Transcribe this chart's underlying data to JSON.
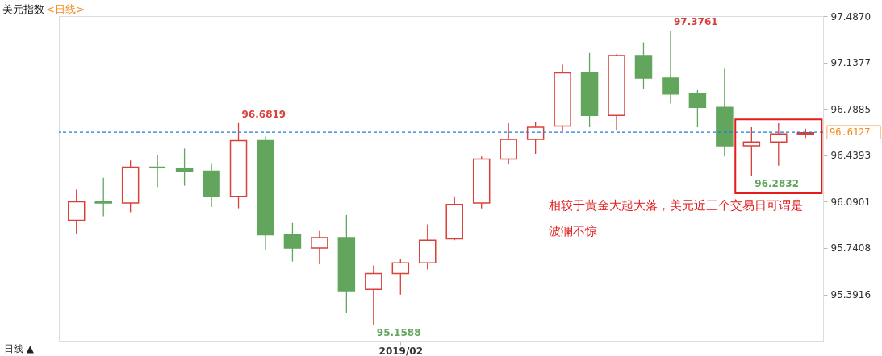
{
  "chart_data": {
    "type": "candlestick",
    "title": "美元指数",
    "subtitle": "<日线>",
    "categories": [
      null,
      null,
      null,
      null,
      null,
      null,
      null,
      null,
      null,
      null,
      null,
      null,
      "2019/02",
      null,
      null,
      null,
      null,
      null,
      null,
      null,
      null,
      null,
      null,
      null,
      null,
      null,
      null,
      null
    ],
    "ohlc": [
      [
        95.95,
        96.18,
        95.85,
        96.09
      ],
      [
        96.09,
        96.27,
        95.98,
        96.08
      ],
      [
        96.08,
        96.4,
        96.01,
        96.35
      ],
      [
        96.35,
        96.44,
        96.2,
        96.35
      ],
      [
        96.34,
        96.49,
        96.21,
        96.32
      ],
      [
        96.32,
        96.38,
        96.05,
        96.13
      ],
      [
        96.13,
        96.6819,
        96.04,
        96.55
      ],
      [
        96.55,
        96.58,
        95.73,
        95.84
      ],
      [
        95.84,
        95.93,
        95.64,
        95.74
      ],
      [
        95.74,
        95.87,
        95.62,
        95.82
      ],
      [
        95.82,
        95.99,
        95.25,
        95.42
      ],
      [
        95.43,
        95.61,
        95.1588,
        95.55
      ],
      [
        95.55,
        95.66,
        95.39,
        95.63
      ],
      [
        95.63,
        95.92,
        95.58,
        95.8
      ],
      [
        95.81,
        96.13,
        95.8,
        96.07
      ],
      [
        96.08,
        96.43,
        96.04,
        96.41
      ],
      [
        96.41,
        96.68,
        96.37,
        96.56
      ],
      [
        96.56,
        96.69,
        96.45,
        96.65
      ],
      [
        96.66,
        97.12,
        96.62,
        97.06
      ],
      [
        97.06,
        97.21,
        96.65,
        96.74
      ],
      [
        96.74,
        97.2,
        96.63,
        97.19
      ],
      [
        97.19,
        97.29,
        96.94,
        97.02
      ],
      [
        97.02,
        97.3761,
        96.83,
        96.9
      ],
      [
        96.9,
        96.93,
        96.65,
        96.8
      ],
      [
        96.8,
        97.09,
        96.43,
        96.51
      ],
      [
        96.51,
        96.65,
        96.2832,
        96.54
      ],
      [
        96.54,
        96.68,
        96.36,
        96.6
      ],
      [
        96.6,
        96.64,
        96.57,
        96.61
      ]
    ],
    "colors": [
      "#d9403a",
      "#62a55c",
      "#d9403a",
      "#62a55c",
      "#62a55c",
      "#62a55c",
      "#d9403a",
      "#62a55c",
      "#62a55c",
      "#d9403a",
      "#62a55c",
      "#d9403a",
      "#d9403a",
      "#d9403a",
      "#d9403a",
      "#d9403a",
      "#d9403a",
      "#d9403a",
      "#d9403a",
      "#62a55c",
      "#d9403a",
      "#62a55c",
      "#62a55c",
      "#62a55c",
      "#62a55c",
      "#d9403a",
      "#d9403a",
      "#d9403a"
    ],
    "ylim": [
      95.0433,
      97.487
    ],
    "yticks": [
      {
        "value": 97.487,
        "label": "97.4870"
      },
      {
        "value": 97.1377,
        "label": "97.1377"
      },
      {
        "value": 96.7885,
        "label": "96.7885"
      },
      {
        "value": 96.4393,
        "label": "96.4393"
      },
      {
        "value": 96.0901,
        "label": "96.0901"
      },
      {
        "value": 95.7408,
        "label": "95.7408"
      },
      {
        "value": 95.3916,
        "label": "95.3916"
      }
    ],
    "ref_lines": [
      {
        "axis": "y",
        "value": 96.6127,
        "label": "96.6127",
        "color": "#1e7be0",
        "line_style": "dashed"
      }
    ],
    "annotations": [
      "相较于黄金大起大落，美元近三个交易日可谓是波澜不惊",
      "日线 ▲",
      "96.6819",
      "97.3761",
      "95.1588",
      "96.2832"
    ],
    "grid": false
  }
}
